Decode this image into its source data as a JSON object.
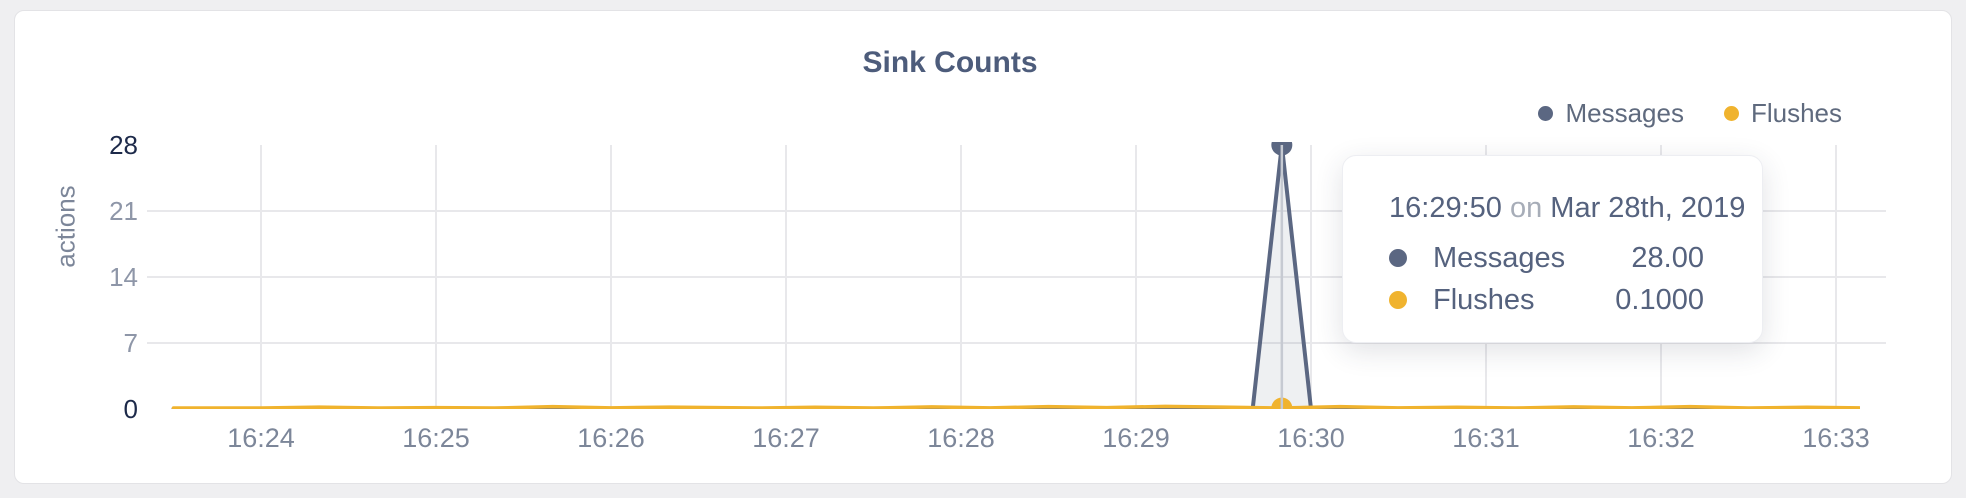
{
  "tooltip": {
    "time": "16:29:50",
    "separator": "on",
    "date": "Mar 28th, 2019",
    "rows": [
      {
        "name": "Messages",
        "value": "28.00",
        "color": "#5b6782"
      },
      {
        "name": "Flushes",
        "value": "0.1000",
        "color": "#f0b32e"
      }
    ]
  },
  "colors": {
    "grid": "#e8e8eb",
    "crosshair": "#c6cad2",
    "tick_edge": "#1d2a4a",
    "tick_mid": "#8e96a8",
    "axis_text": "#7c8699"
  },
  "chart_data": {
    "type": "line",
    "title": "Sink Counts",
    "xlabel": "",
    "ylabel": "actions",
    "ylim": [
      0,
      28
    ],
    "y_ticks": [
      0,
      7,
      14,
      21,
      28
    ],
    "x_ticks": [
      "16:24",
      "16:25",
      "16:26",
      "16:27",
      "16:28",
      "16:29",
      "16:30",
      "16:31",
      "16:32",
      "16:33"
    ],
    "date": "Mar 28th, 2019",
    "grid": true,
    "legend_position": "top-right",
    "series": [
      {
        "name": "Messages",
        "color": "#5b6782",
        "stroke_width": 4,
        "fill": "rgba(92,104,131,0.10)",
        "points": [
          [
            "16:23:30",
            0
          ],
          [
            "16:29:40",
            0
          ],
          [
            "16:29:50",
            28
          ],
          [
            "16:30:00",
            0
          ],
          [
            "16:33:08",
            0
          ]
        ]
      },
      {
        "name": "Flushes",
        "color": "#f0b32e",
        "stroke_width": 3.5,
        "fill": null,
        "points": [
          [
            "16:23:30",
            0.1
          ],
          [
            "16:24:00",
            0.1
          ],
          [
            "16:24:20",
            0.2
          ],
          [
            "16:24:40",
            0.1
          ],
          [
            "16:25:00",
            0.15
          ],
          [
            "16:25:20",
            0.1
          ],
          [
            "16:25:40",
            0.25
          ],
          [
            "16:26:00",
            0.12
          ],
          [
            "16:26:20",
            0.2
          ],
          [
            "16:26:50",
            0.1
          ],
          [
            "16:27:10",
            0.18
          ],
          [
            "16:27:30",
            0.1
          ],
          [
            "16:27:50",
            0.22
          ],
          [
            "16:28:10",
            0.12
          ],
          [
            "16:28:30",
            0.25
          ],
          [
            "16:28:50",
            0.15
          ],
          [
            "16:29:10",
            0.28
          ],
          [
            "16:29:30",
            0.2
          ],
          [
            "16:29:50",
            0.1
          ],
          [
            "16:30:10",
            0.25
          ],
          [
            "16:30:30",
            0.12
          ],
          [
            "16:30:50",
            0.18
          ],
          [
            "16:31:10",
            0.1
          ],
          [
            "16:31:30",
            0.22
          ],
          [
            "16:31:50",
            0.12
          ],
          [
            "16:32:10",
            0.25
          ],
          [
            "16:32:30",
            0.1
          ],
          [
            "16:32:50",
            0.18
          ],
          [
            "16:33:08",
            0.12
          ]
        ]
      }
    ],
    "hover": {
      "time": "16:29:50",
      "values": {
        "Messages": 28.0,
        "Flushes": 0.1
      }
    }
  }
}
